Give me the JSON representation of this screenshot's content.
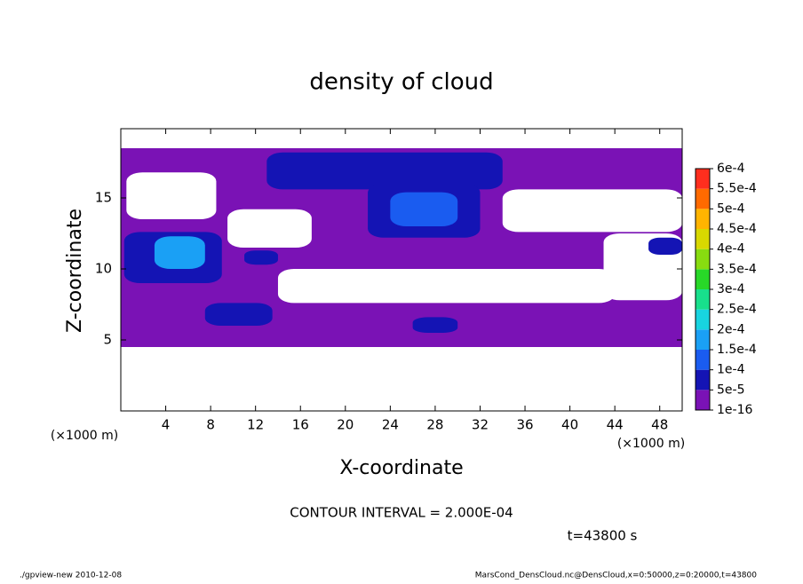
{
  "chart_data": {
    "type": "contour",
    "title": "density of cloud",
    "x_label": "X-coordinate",
    "y_label": "Z-coordinate",
    "x_unit": "(×1000 m)",
    "y_unit": "(×1000 m)",
    "xlim": [
      0,
      50
    ],
    "ylim": [
      0,
      20
    ],
    "xticks": [
      4,
      8,
      12,
      16,
      20,
      24,
      28,
      32,
      36,
      40,
      44,
      48
    ],
    "yticks": [
      5,
      10,
      15
    ],
    "levels": [
      {
        "value": 1e-16,
        "label": "1e-16"
      },
      {
        "value": 5e-05,
        "label": "5e-5"
      },
      {
        "value": 0.0001,
        "label": "1e-4"
      },
      {
        "value": 0.00015,
        "label": "1.5e-4"
      },
      {
        "value": 0.0002,
        "label": "2e-4"
      },
      {
        "value": 0.00025,
        "label": "2.5e-4"
      },
      {
        "value": 0.0003,
        "label": "3e-4"
      },
      {
        "value": 0.00035,
        "label": "3.5e-4"
      },
      {
        "value": 0.0004,
        "label": "4e-4"
      },
      {
        "value": 0.00045,
        "label": "4.5e-4"
      },
      {
        "value": 0.0005,
        "label": "5e-4"
      },
      {
        "value": 0.00055,
        "label": "5.5e-4"
      },
      {
        "value": 0.0006,
        "label": "6e-4"
      }
    ],
    "colors": [
      "#7a12b5",
      "#1414b4",
      "#1a5cf0",
      "#1aa0f5",
      "#18d4e0",
      "#18e08c",
      "#28d828",
      "#88dc10",
      "#d8d800",
      "#ffb400",
      "#ff6a00",
      "#ff2e1e",
      "#ff9494"
    ],
    "field": [
      {
        "x": [
          0,
          50
        ],
        "z": [
          4.5,
          18.5
        ],
        "value": 1e-05
      },
      {
        "x": [
          0.5,
          8.5
        ],
        "z": [
          13.5,
          16.8
        ],
        "value": 0
      },
      {
        "x": [
          9.5,
          17
        ],
        "z": [
          11.5,
          14.2
        ],
        "value": 0
      },
      {
        "x": [
          14,
          44
        ],
        "z": [
          7.6,
          10
        ],
        "value": 0
      },
      {
        "x": [
          43,
          50
        ],
        "z": [
          7.8,
          12.5
        ],
        "value": 0
      },
      {
        "x": [
          34,
          50
        ],
        "z": [
          12.6,
          15.6
        ],
        "value": 0
      },
      {
        "x": [
          13,
          34
        ],
        "z": [
          15.6,
          18.2
        ],
        "value": 7e-05
      },
      {
        "x": [
          22,
          32
        ],
        "z": [
          12.2,
          16
        ],
        "value": 9e-05
      },
      {
        "x": [
          24,
          30
        ],
        "z": [
          13,
          15.4
        ],
        "value": 0.00012
      },
      {
        "x": [
          0.3,
          9
        ],
        "z": [
          9,
          12.6
        ],
        "value": 9e-05
      },
      {
        "x": [
          3,
          7.5
        ],
        "z": [
          10,
          12.3
        ],
        "value": 0.00016
      },
      {
        "x": [
          11,
          14
        ],
        "z": [
          10.3,
          11.3
        ],
        "value": 8e-05
      },
      {
        "x": [
          7.5,
          13.5
        ],
        "z": [
          6,
          7.6
        ],
        "value": 8e-05
      },
      {
        "x": [
          26,
          30
        ],
        "z": [
          5.5,
          6.6
        ],
        "value": 7e-05
      },
      {
        "x": [
          47,
          50
        ],
        "z": [
          11,
          12.2
        ],
        "value": 8e-05
      }
    ],
    "annotation": "CONTOUR INTERVAL = 2.000E-04",
    "time": "t=43800 s",
    "footer_left": "./gpview-new   2010-12-08",
    "footer_right": "MarsCond_DensCloud.nc@DensCloud,x=0:50000,z=0:20000,t=43800"
  }
}
